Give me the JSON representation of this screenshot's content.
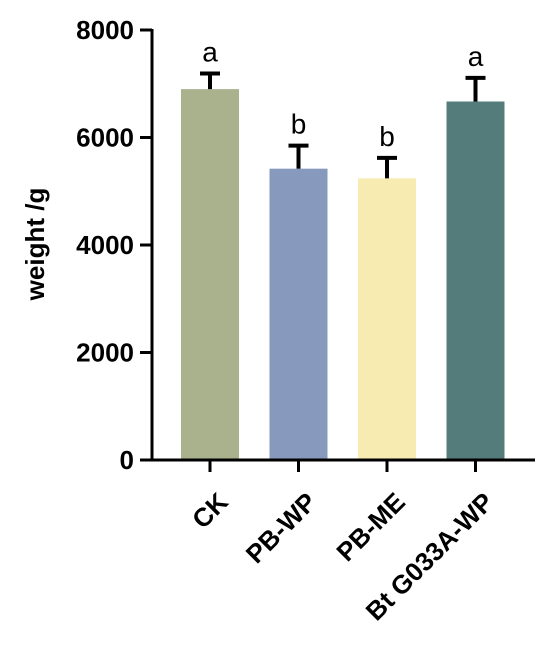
{
  "chart_data": {
    "type": "bar",
    "ylabel": "weight /g",
    "xlabel": "",
    "title": "",
    "ylim": [
      0,
      8000
    ],
    "yticks": [
      0,
      2000,
      4000,
      6000,
      8000
    ],
    "grid": false,
    "categories": [
      "CK",
      "PB-WP",
      "PB-ME",
      "Bt G033A-WP"
    ],
    "values": [
      6900,
      5420,
      5240,
      6670
    ],
    "errors": [
      290,
      430,
      380,
      440
    ],
    "significance_letters": [
      "a",
      "b",
      "b",
      "a"
    ],
    "colors": [
      "#a9b18d",
      "#8799bc",
      "#f8ebb2",
      "#537c7b"
    ]
  }
}
